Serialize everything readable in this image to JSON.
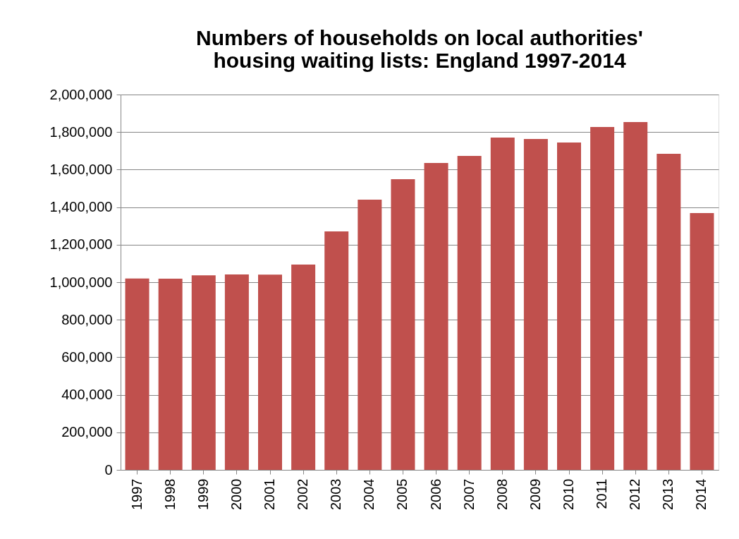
{
  "chart_data": {
    "type": "bar",
    "title": "Numbers of households on local authorities' housing waiting lists: England 1997-2014",
    "categories": [
      "1997",
      "1998",
      "1999",
      "2000",
      "2001",
      "2002",
      "2003",
      "2004",
      "2005",
      "2006",
      "2007",
      "2008",
      "2009",
      "2010",
      "2011",
      "2012",
      "2013",
      "2014"
    ],
    "values": [
      1020000,
      1019000,
      1037000,
      1041000,
      1040000,
      1094000,
      1271000,
      1440000,
      1549000,
      1635000,
      1673000,
      1771000,
      1763000,
      1744000,
      1827000,
      1853000,
      1684000,
      1368000
    ],
    "color": "#c0504d",
    "ylim": [
      0,
      2000000
    ],
    "yticks": [
      0,
      {
        "value": 200000,
        "label": "200,000"
      },
      {
        "value": 400000,
        "label": "400,000"
      },
      {
        "value": 600000,
        "label": "600,000"
      },
      {
        "value": 800000,
        "label": "800,000"
      },
      {
        "value": 1000000,
        "label": "1,000,000"
      },
      {
        "value": 1200000,
        "label": "1,200,000"
      },
      {
        "value": 1400000,
        "label": "1,400,000"
      },
      {
        "value": 1600000,
        "label": "1,600,000"
      },
      {
        "value": 1800000,
        "label": "1,800,000"
      },
      {
        "value": 2000000,
        "label": "2,000,000"
      }
    ],
    "grid": "y"
  }
}
